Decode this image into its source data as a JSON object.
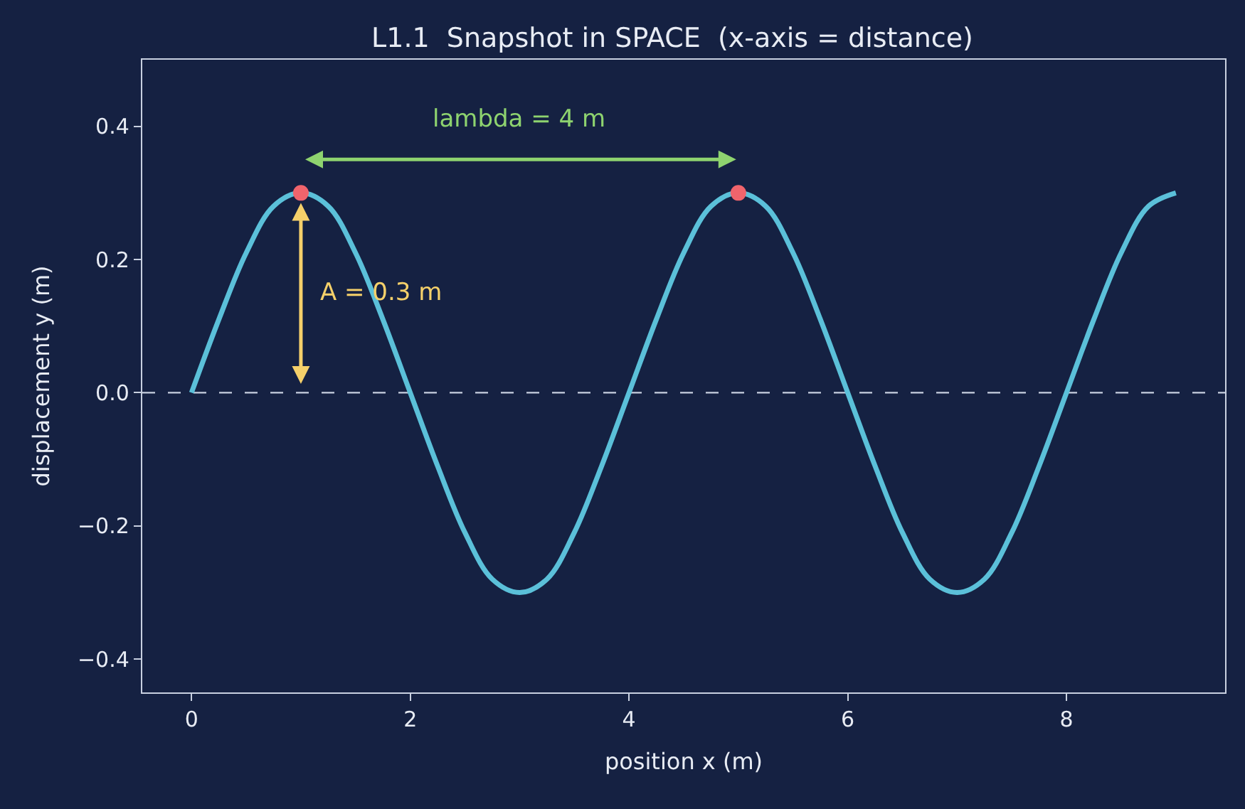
{
  "chart_data": {
    "type": "line",
    "title": "L1.1  Snapshot in SPACE  (x-axis = distance)",
    "xlabel": "position x (m)",
    "ylabel": "displacement y (m)",
    "series": [
      {
        "color": "#5bc0d9",
        "marker": "none",
        "x": [
          0,
          0.25,
          0.5,
          0.75,
          1,
          1.25,
          1.5,
          1.75,
          2,
          2.25,
          2.5,
          2.75,
          3,
          3.25,
          3.5,
          3.75,
          4,
          4.25,
          4.5,
          4.75,
          5,
          5.25,
          5.5,
          5.75,
          6,
          6.25,
          6.5,
          6.75,
          7,
          7.25,
          7.5,
          7.75,
          8,
          8.25,
          8.5,
          8.75,
          9
        ],
        "values": [
          0,
          0.11,
          0.21,
          0.28,
          0.3,
          0.28,
          0.21,
          0.11,
          0,
          -0.11,
          -0.21,
          -0.28,
          -0.3,
          -0.28,
          -0.21,
          -0.11,
          0,
          0.11,
          0.21,
          0.28,
          0.3,
          0.28,
          0.21,
          0.11,
          0,
          -0.11,
          -0.21,
          -0.28,
          -0.3,
          -0.28,
          -0.21,
          -0.11,
          0,
          0.11,
          0.21,
          0.28,
          0.3
        ]
      },
      {
        "type": "scatter",
        "color": "#f0646c",
        "marker": "circle",
        "x": [
          1,
          5
        ],
        "values": [
          0.3,
          0.3
        ]
      }
    ],
    "annotations": [
      "lambda = 4 m",
      "A = 0.3 m"
    ],
    "ref_lines": [
      {
        "axis": "y",
        "value": 0,
        "color": "#c8d0e0",
        "line_style": "dashed"
      }
    ],
    "xlim": [
      -0.45,
      9.45
    ],
    "xticks": [
      0,
      2,
      4,
      6,
      8
    ],
    "ylim": [
      -0.45,
      0.5
    ],
    "yticks": [
      {
        "value": -0.4,
        "label": "−0.4"
      },
      {
        "value": -0.2,
        "label": "−0.2"
      },
      {
        "value": 0,
        "label": "0.0"
      },
      {
        "value": 0.2,
        "label": "0.2"
      },
      {
        "value": 0.4,
        "label": "0.4"
      }
    ],
    "grid": false
  }
}
